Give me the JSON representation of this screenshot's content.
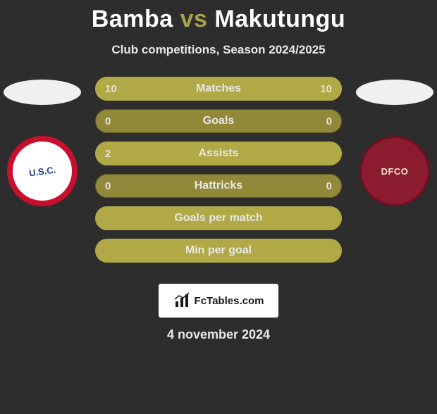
{
  "title": {
    "player1": "Bamba",
    "vs": "vs",
    "player2": "Makutungu",
    "colors": {
      "p1": "#ffffff",
      "vs": "#a7a14d",
      "p2": "#ffffff"
    }
  },
  "subtitle": "Club competitions, Season 2024/2025",
  "background_color": "#2d2d2d",
  "crests": {
    "left": {
      "abbr": "U.S.C.",
      "bg": "#ffffff",
      "ring": "#c8102e",
      "text_color": "#1a3a8f"
    },
    "right": {
      "abbr": "DFCO",
      "bg": "#8b1b2f",
      "ring": "#6e0f22",
      "text_color": "#f0e2c4"
    }
  },
  "comparison": {
    "type": "bar",
    "bar_colors": {
      "base": "#918939",
      "fill": "#b0a945",
      "border": "#5d5820"
    },
    "label_color": "#e8e8e8",
    "label_fontsize": 16,
    "rows": [
      {
        "label": "Matches",
        "left": "10",
        "right": "10",
        "left_pct": 50,
        "right_pct": 50
      },
      {
        "label": "Goals",
        "left": "0",
        "right": "0",
        "left_pct": 0,
        "right_pct": 0
      },
      {
        "label": "Assists",
        "left": "2",
        "right": null,
        "left_pct": 100,
        "right_pct": 0
      },
      {
        "label": "Hattricks",
        "left": "0",
        "right": "0",
        "left_pct": 0,
        "right_pct": 0
      },
      {
        "label": "Goals per match",
        "left": null,
        "right": null,
        "left_pct": 100,
        "right_pct": 0
      },
      {
        "label": "Min per goal",
        "left": null,
        "right": null,
        "left_pct": 100,
        "right_pct": 0
      }
    ]
  },
  "footer": {
    "brand": "FcTables.com",
    "date": "4 november 2024"
  }
}
